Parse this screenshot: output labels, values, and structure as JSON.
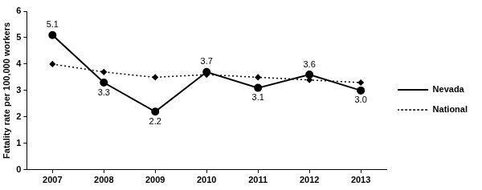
{
  "chart_data": {
    "type": "line",
    "y_label": "Fatality rate per 100,000 workers",
    "categories": [
      "2007",
      "2008",
      "2009",
      "2010",
      "2011",
      "2012",
      "2013"
    ],
    "series": [
      {
        "name": "Nevada",
        "color": "#000000",
        "marker": "circle",
        "line_style": "solid",
        "values": [
          5.1,
          3.3,
          2.2,
          3.7,
          3.1,
          3.6,
          3.0
        ],
        "data_labels": true,
        "value_labels": [
          "5.1",
          "3.3",
          "2.2",
          "3.7",
          "3.1",
          "3.6",
          "3.0"
        ]
      },
      {
        "name": "National",
        "color": "#000000",
        "marker": "diamond",
        "line_style": "dotted",
        "values": [
          4.0,
          3.7,
          3.5,
          3.6,
          3.5,
          3.4,
          3.3
        ]
      }
    ],
    "ylim": [
      0,
      6
    ],
    "yticks": [
      0,
      1,
      2,
      3,
      4,
      5,
      6
    ],
    "grid": false,
    "legend": "right"
  }
}
